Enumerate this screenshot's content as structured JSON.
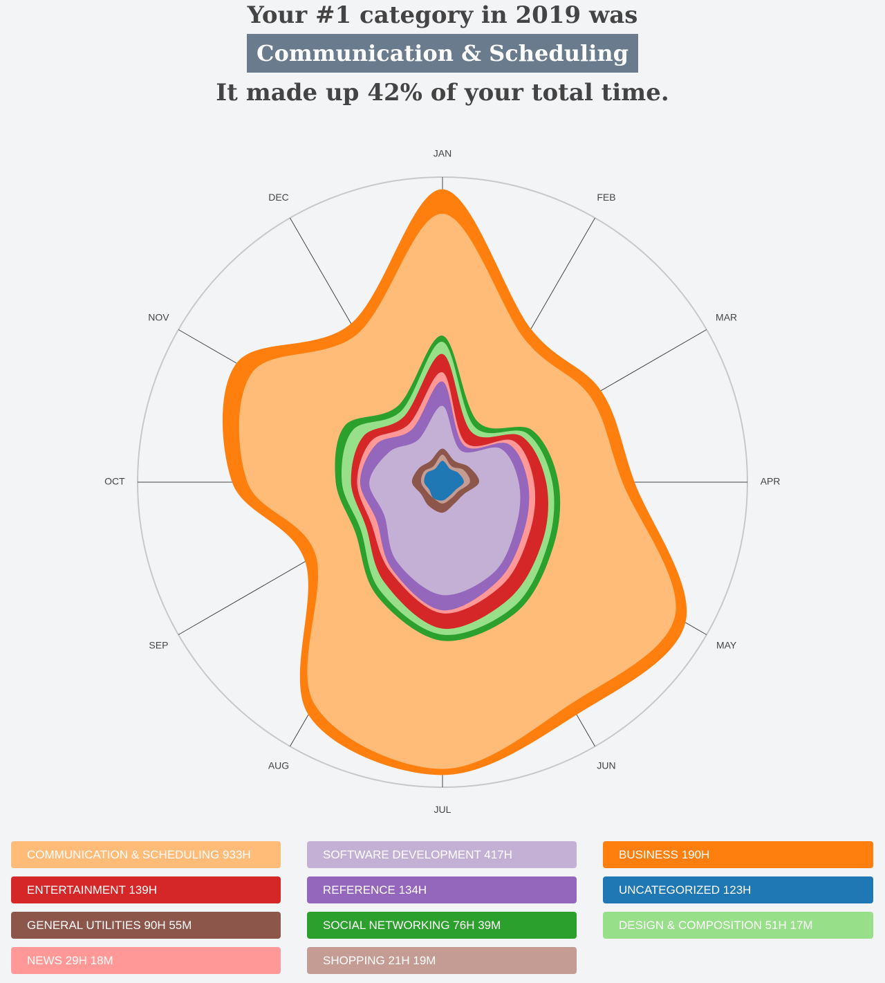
{
  "hero": {
    "line1": "Your #1 category in 2019 was",
    "category": "Communication & Scheduling",
    "line3": "It made up 42% of your total time."
  },
  "chart_data": {
    "type": "radar",
    "subtype": "stacked-area-radial",
    "axes": [
      "JAN",
      "FEB",
      "MAR",
      "APR",
      "MAY",
      "JUN",
      "JUL",
      "AUG",
      "SEP",
      "OCT",
      "NOV",
      "DEC"
    ],
    "outer_ring": true,
    "series": [
      {
        "name": "Communication & Scheduling",
        "color": "#ffbb78",
        "radii": [
          0.88,
          0.54,
          0.56,
          0.59,
          0.88,
          0.84,
          0.94,
          0.84,
          0.48,
          0.64,
          0.72,
          0.56
        ]
      },
      {
        "name": "Business",
        "color": "#ff7f0e",
        "radii": [
          0.96,
          0.58,
          0.6,
          0.63,
          0.92,
          0.88,
          0.96,
          0.88,
          0.52,
          0.69,
          0.78,
          0.6
        ]
      },
      {
        "name": "Software Development",
        "color": "#c5b0d5",
        "radii": [
          0.25,
          0.12,
          0.22,
          0.25,
          0.28,
          0.34,
          0.37,
          0.3,
          0.22,
          0.24,
          0.2,
          0.16
        ]
      },
      {
        "name": "Reference",
        "color": "#9467bd",
        "radii": [
          0.33,
          0.14,
          0.25,
          0.28,
          0.31,
          0.37,
          0.42,
          0.33,
          0.25,
          0.27,
          0.25,
          0.2
        ]
      },
      {
        "name": "News",
        "color": "#ff9896",
        "radii": [
          0.36,
          0.15,
          0.27,
          0.3,
          0.33,
          0.39,
          0.43,
          0.34,
          0.27,
          0.28,
          0.27,
          0.22
        ]
      },
      {
        "name": "Entertainment",
        "color": "#d62728",
        "radii": [
          0.42,
          0.19,
          0.3,
          0.34,
          0.38,
          0.44,
          0.48,
          0.38,
          0.29,
          0.3,
          0.3,
          0.25
        ]
      },
      {
        "name": "Design & Composition",
        "color": "#98df8a",
        "radii": [
          0.46,
          0.21,
          0.32,
          0.36,
          0.4,
          0.47,
          0.5,
          0.41,
          0.31,
          0.33,
          0.34,
          0.27
        ]
      },
      {
        "name": "Social Networking",
        "color": "#2ca02c",
        "radii": [
          0.48,
          0.23,
          0.34,
          0.38,
          0.42,
          0.49,
          0.52,
          0.43,
          0.33,
          0.35,
          0.37,
          0.29
        ]
      },
      {
        "name": "General Utilities",
        "color": "#8c564b",
        "radii": [
          0.11,
          0.08,
          0.1,
          0.12,
          0.08,
          0.08,
          0.1,
          0.09,
          0.08,
          0.1,
          0.09,
          0.08
        ]
      },
      {
        "name": "Shopping",
        "color": "#c49c94",
        "radii": [
          0.09,
          0.06,
          0.08,
          0.09,
          0.06,
          0.06,
          0.07,
          0.06,
          0.06,
          0.07,
          0.07,
          0.06
        ]
      },
      {
        "name": "Uncategorized",
        "color": "#1f77b4",
        "radii": [
          0.07,
          0.05,
          0.06,
          0.07,
          0.05,
          0.05,
          0.06,
          0.06,
          0.05,
          0.06,
          0.06,
          0.05
        ]
      }
    ],
    "legend": [
      {
        "label": "COMMUNICATION & SCHEDULING 933H",
        "color": "#ffbb78"
      },
      {
        "label": "SOFTWARE DEVELOPMENT 417H",
        "color": "#c5b0d5"
      },
      {
        "label": "BUSINESS 190H",
        "color": "#ff7f0e"
      },
      {
        "label": "ENTERTAINMENT 139H",
        "color": "#d62728"
      },
      {
        "label": "REFERENCE 134H",
        "color": "#9467bd"
      },
      {
        "label": "UNCATEGORIZED 123H",
        "color": "#1f77b4"
      },
      {
        "label": "GENERAL UTILITIES 90H 55M",
        "color": "#8c564b"
      },
      {
        "label": "SOCIAL NETWORKING 76H 39M",
        "color": "#2ca02c"
      },
      {
        "label": "DESIGN & COMPOSITION 51H 17M",
        "color": "#98df8a"
      },
      {
        "label": "NEWS 29H 18M",
        "color": "#ff9896"
      },
      {
        "label": "SHOPPING 21H 19M",
        "color": "#c49c94"
      }
    ]
  }
}
